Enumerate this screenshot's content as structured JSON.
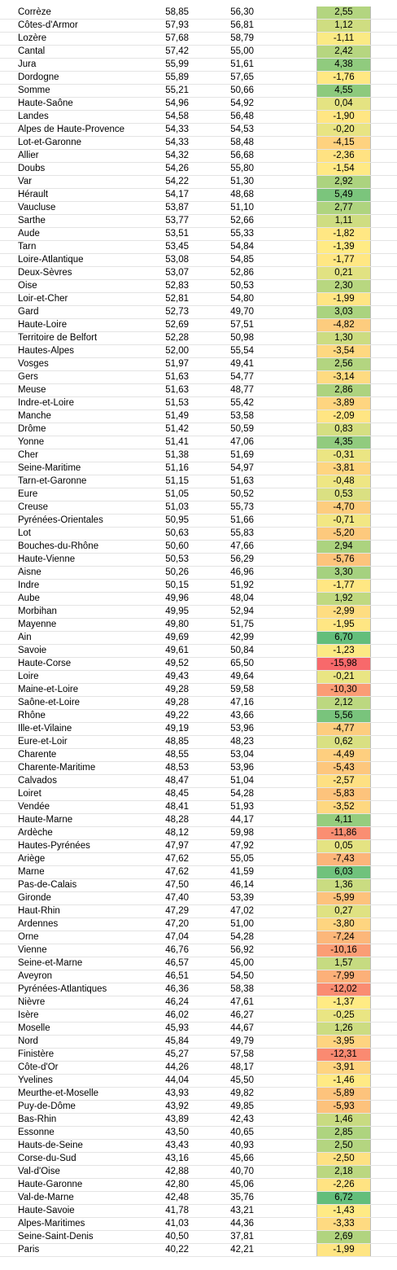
{
  "table": {
    "rows": [
      [
        "Corrèze",
        "58,85",
        "56,30",
        "2,55"
      ],
      [
        "Côtes-d'Armor",
        "57,93",
        "56,81",
        "1,12"
      ],
      [
        "Lozère",
        "57,68",
        "58,79",
        "-1,11"
      ],
      [
        "Cantal",
        "57,42",
        "55,00",
        "2,42"
      ],
      [
        "Jura",
        "55,99",
        "51,61",
        "4,38"
      ],
      [
        "Dordogne",
        "55,89",
        "57,65",
        "-1,76"
      ],
      [
        "Somme",
        "55,21",
        "50,66",
        "4,55"
      ],
      [
        "Haute-Saône",
        "54,96",
        "54,92",
        "0,04"
      ],
      [
        "Landes",
        "54,58",
        "56,48",
        "-1,90"
      ],
      [
        "Alpes de Haute-Provence",
        "54,33",
        "54,53",
        "-0,20"
      ],
      [
        "Lot-et-Garonne",
        "54,33",
        "58,48",
        "-4,15"
      ],
      [
        "Allier",
        "54,32",
        "56,68",
        "-2,36"
      ],
      [
        "Doubs",
        "54,26",
        "55,80",
        "-1,54"
      ],
      [
        "Var",
        "54,22",
        "51,30",
        "2,92"
      ],
      [
        "Hérault",
        "54,17",
        "48,68",
        "5,49"
      ],
      [
        "Vaucluse",
        "53,87",
        "51,10",
        "2,77"
      ],
      [
        "Sarthe",
        "53,77",
        "52,66",
        "1,11"
      ],
      [
        "Aude",
        "53,51",
        "55,33",
        "-1,82"
      ],
      [
        "Tarn",
        "53,45",
        "54,84",
        "-1,39"
      ],
      [
        "Loire-Atlantique",
        "53,08",
        "54,85",
        "-1,77"
      ],
      [
        "Deux-Sèvres",
        "53,07",
        "52,86",
        "0,21"
      ],
      [
        "Oise",
        "52,83",
        "50,53",
        "2,30"
      ],
      [
        "Loir-et-Cher",
        "52,81",
        "54,80",
        "-1,99"
      ],
      [
        "Gard",
        "52,73",
        "49,70",
        "3,03"
      ],
      [
        "Haute-Loire",
        "52,69",
        "57,51",
        "-4,82"
      ],
      [
        "Territoire de Belfort",
        "52,28",
        "50,98",
        "1,30"
      ],
      [
        "Hautes-Alpes",
        "52,00",
        "55,54",
        "-3,54"
      ],
      [
        "Vosges",
        "51,97",
        "49,41",
        "2,56"
      ],
      [
        "Gers",
        "51,63",
        "54,77",
        "-3,14"
      ],
      [
        "Meuse",
        "51,63",
        "48,77",
        "2,86"
      ],
      [
        "Indre-et-Loire",
        "51,53",
        "55,42",
        "-3,89"
      ],
      [
        "Manche",
        "51,49",
        "53,58",
        "-2,09"
      ],
      [
        "Drôme",
        "51,42",
        "50,59",
        "0,83"
      ],
      [
        "Yonne",
        "51,41",
        "47,06",
        "4,35"
      ],
      [
        "Cher",
        "51,38",
        "51,69",
        "-0,31"
      ],
      [
        "Seine-Maritime",
        "51,16",
        "54,97",
        "-3,81"
      ],
      [
        "Tarn-et-Garonne",
        "51,15",
        "51,63",
        "-0,48"
      ],
      [
        "Eure",
        "51,05",
        "50,52",
        "0,53"
      ],
      [
        "Creuse",
        "51,03",
        "55,73",
        "-4,70"
      ],
      [
        "Pyrénées-Orientales",
        "50,95",
        "51,66",
        "-0,71"
      ],
      [
        "Lot",
        "50,63",
        "55,83",
        "-5,20"
      ],
      [
        "Bouches-du-Rhône",
        "50,60",
        "47,66",
        "2,94"
      ],
      [
        "Haute-Vienne",
        "50,53",
        "56,29",
        "-5,76"
      ],
      [
        "Aisne",
        "50,26",
        "46,96",
        "3,30"
      ],
      [
        "Indre",
        "50,15",
        "51,92",
        "-1,77"
      ],
      [
        "Aube",
        "49,96",
        "48,04",
        "1,92"
      ],
      [
        "Morbihan",
        "49,95",
        "52,94",
        "-2,99"
      ],
      [
        "Mayenne",
        "49,80",
        "51,75",
        "-1,95"
      ],
      [
        "Ain",
        "49,69",
        "42,99",
        "6,70"
      ],
      [
        "Savoie",
        "49,61",
        "50,84",
        "-1,23"
      ],
      [
        "Haute-Corse",
        "49,52",
        "65,50",
        "-15,98"
      ],
      [
        "Loire",
        "49,43",
        "49,64",
        "-0,21"
      ],
      [
        "Maine-et-Loire",
        "49,28",
        "59,58",
        "-10,30"
      ],
      [
        "Saône-et-Loire",
        "49,28",
        "47,16",
        "2,12"
      ],
      [
        "Rhône",
        "49,22",
        "43,66",
        "5,56"
      ],
      [
        "Ille-et-Vilaine",
        "49,19",
        "53,96",
        "-4,77"
      ],
      [
        "Eure-et-Loir",
        "48,85",
        "48,23",
        "0,62"
      ],
      [
        "Charente",
        "48,55",
        "53,04",
        "-4,49"
      ],
      [
        "Charente-Maritime",
        "48,53",
        "53,96",
        "-5,43"
      ],
      [
        "Calvados",
        "48,47",
        "51,04",
        "-2,57"
      ],
      [
        "Loiret",
        "48,45",
        "54,28",
        "-5,83"
      ],
      [
        "Vendée",
        "48,41",
        "51,93",
        "-3,52"
      ],
      [
        "Haute-Marne",
        "48,28",
        "44,17",
        "4,11"
      ],
      [
        "Ardèche",
        "48,12",
        "59,98",
        "-11,86"
      ],
      [
        "Hautes-Pyrénées",
        "47,97",
        "47,92",
        "0,05"
      ],
      [
        "Ariège",
        "47,62",
        "55,05",
        "-7,43"
      ],
      [
        "Marne",
        "47,62",
        "41,59",
        "6,03"
      ],
      [
        "Pas-de-Calais",
        "47,50",
        "46,14",
        "1,36"
      ],
      [
        "Gironde",
        "47,40",
        "53,39",
        "-5,99"
      ],
      [
        "Haut-Rhin",
        "47,29",
        "47,02",
        "0,27"
      ],
      [
        "Ardennes",
        "47,20",
        "51,00",
        "-3,80"
      ],
      [
        "Orne",
        "47,04",
        "54,28",
        "-7,24"
      ],
      [
        "Vienne",
        "46,76",
        "56,92",
        "-10,16"
      ],
      [
        "Seine-et-Marne",
        "46,57",
        "45,00",
        "1,57"
      ],
      [
        "Aveyron",
        "46,51",
        "54,50",
        "-7,99"
      ],
      [
        "Pyrénées-Atlantiques",
        "46,36",
        "58,38",
        "-12,02"
      ],
      [
        "Nièvre",
        "46,24",
        "47,61",
        "-1,37"
      ],
      [
        "Isère",
        "46,02",
        "46,27",
        "-0,25"
      ],
      [
        "Moselle",
        "45,93",
        "44,67",
        "1,26"
      ],
      [
        "Nord",
        "45,84",
        "49,79",
        "-3,95"
      ],
      [
        "Finistère",
        "45,27",
        "57,58",
        "-12,31"
      ],
      [
        "Côte-d'Or",
        "44,26",
        "48,17",
        "-3,91"
      ],
      [
        "Yvelines",
        "44,04",
        "45,50",
        "-1,46"
      ],
      [
        "Meurthe-et-Moselle",
        "43,93",
        "49,82",
        "-5,89"
      ],
      [
        "Puy-de-Dôme",
        "43,92",
        "49,85",
        "-5,93"
      ],
      [
        "Bas-Rhin",
        "43,89",
        "42,43",
        "1,46"
      ],
      [
        "Essonne",
        "43,50",
        "40,65",
        "2,85"
      ],
      [
        "Hauts-de-Seine",
        "43,43",
        "40,93",
        "2,50"
      ],
      [
        "Corse-du-Sud",
        "43,16",
        "45,66",
        "-2,50"
      ],
      [
        "Val-d'Oise",
        "42,88",
        "40,70",
        "2,18"
      ],
      [
        "Haute-Garonne",
        "42,80",
        "45,06",
        "-2,26"
      ],
      [
        "Val-de-Marne",
        "42,48",
        "35,76",
        "6,72"
      ],
      [
        "Haute-Savoie",
        "41,78",
        "43,21",
        "-1,43"
      ],
      [
        "Alpes-Maritimes",
        "41,03",
        "44,36",
        "-3,33"
      ],
      [
        "Seine-Saint-Denis",
        "40,50",
        "37,81",
        "2,69"
      ],
      [
        "Paris",
        "40,22",
        "42,21",
        "-1,99"
      ]
    ]
  }
}
